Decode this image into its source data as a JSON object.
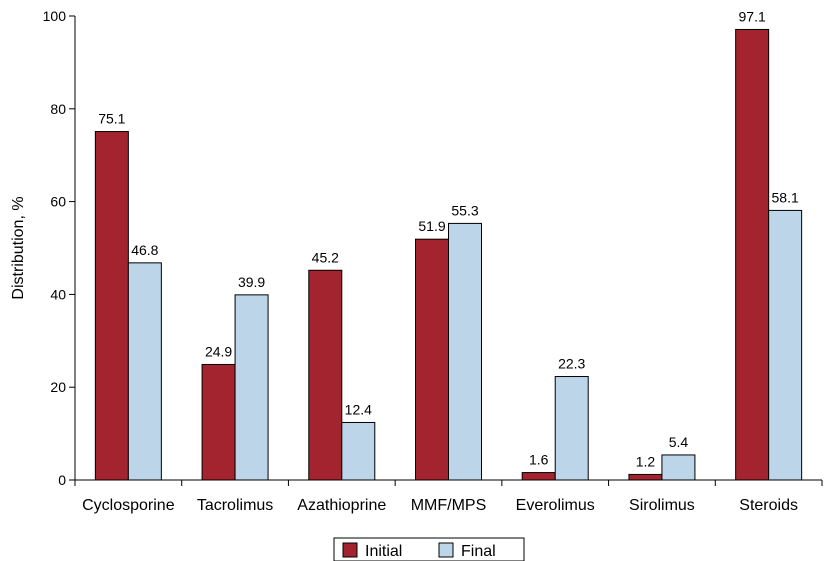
{
  "chart_data": {
    "type": "bar",
    "categories": [
      "Cyclosporine",
      "Tacrolimus",
      "Azathioprine",
      "MMF/MPS",
      "Everolimus",
      "Sirolimus",
      "Steroids"
    ],
    "series": [
      {
        "name": "Initial",
        "values": [
          75.1,
          24.9,
          45.2,
          51.9,
          1.6,
          1.2,
          97.1
        ],
        "color": "#a3232e"
      },
      {
        "name": "Final",
        "values": [
          46.8,
          39.9,
          12.4,
          55.3,
          22.3,
          5.4,
          58.1
        ],
        "color": "#bcd5e8"
      }
    ],
    "data_labels": {
      "Initial": [
        "75.1",
        "24.9",
        "45.2",
        "51.9",
        "1.6",
        "1.2",
        "97.1"
      ],
      "Final": [
        "46.8",
        "39.9",
        "12.4",
        "55.3",
        "22.3",
        "5.4",
        "58.1"
      ]
    },
    "title": "",
    "xlabel": "",
    "ylabel": "Distribution, %",
    "ylim": [
      0,
      100
    ],
    "yticks": [
      0,
      20,
      40,
      60,
      80,
      100
    ],
    "ytick_labels": [
      "0",
      "20",
      "40",
      "60",
      "80",
      "100"
    ],
    "grid": false,
    "legend_position": "bottom-center"
  }
}
